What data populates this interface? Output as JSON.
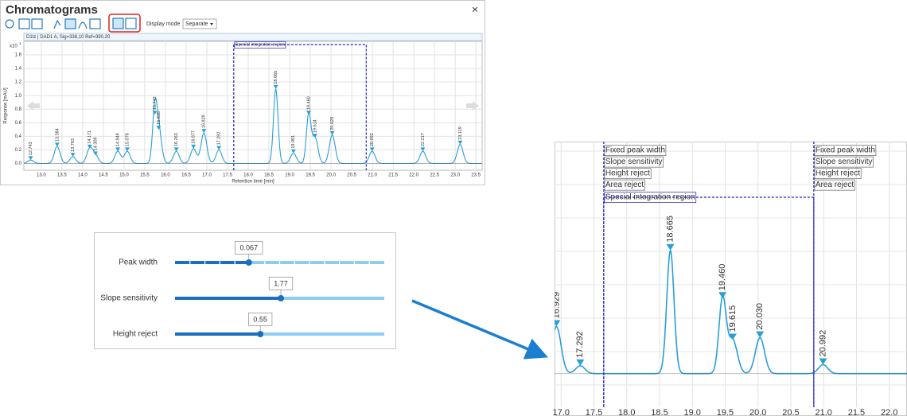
{
  "window": {
    "title": "Chromatograms",
    "close": "×",
    "display_mode_label": "Display mode",
    "display_mode_value": "Separate"
  },
  "chart_data": [
    {
      "type": "chromatogram",
      "title": "D1tz | DAD1 A, Sig=338,10 Ref=390,20",
      "x_label": "Retention time [min]",
      "y_label": "Response [mAU]",
      "y_scale": "x10",
      "y_scale_exponent": 1,
      "x": [
        12.743,
        13.384,
        13.763,
        14.171,
        14.309,
        14.849,
        15.078,
        15.742,
        15.835,
        16.263,
        16.677,
        16.929,
        17.292,
        18.665,
        19.091,
        19.46,
        19.614,
        20.029,
        20.992,
        22.217,
        23.119
      ],
      "x_labels": [
        "12.743",
        "13.384",
        "13.763",
        "14.171",
        "14.309",
        "14.849",
        "15.078",
        "15.742",
        "15.835",
        "16.263",
        "16.677",
        "16.929",
        "17.292",
        "18.665",
        "19.091",
        "19.460",
        "19.614",
        "20.029",
        "20.992",
        "22.217",
        "23.119"
      ],
      "values": [
        0.05,
        0.25,
        0.1,
        0.22,
        0.12,
        0.18,
        0.18,
        0.72,
        0.5,
        0.18,
        0.22,
        0.45,
        0.2,
        1.1,
        0.15,
        0.72,
        0.38,
        0.42,
        0.18,
        0.18,
        0.28
      ],
      "color": "#2a9fd6",
      "region": {
        "label": "Special integration region",
        "x": [
          17.65,
          20.85
        ]
      },
      "xlim": [
        12.58,
        23.65
      ],
      "ylim": [
        -0.1,
        1.8
      ],
      "xticks": [
        {
          "value": 13,
          "label": "13.0"
        },
        {
          "value": 13.5,
          "label": "13.5"
        },
        {
          "value": 14,
          "label": "14.0"
        },
        {
          "value": 14.5,
          "label": "14.5"
        },
        {
          "value": 15,
          "label": "15.0"
        },
        {
          "value": 15.5,
          "label": "15.5"
        },
        {
          "value": 16,
          "label": "16.0"
        },
        {
          "value": 16.5,
          "label": "16.5"
        },
        {
          "value": 17,
          "label": "17.0"
        },
        {
          "value": 17.5,
          "label": "17.5"
        },
        {
          "value": 18,
          "label": "18.0"
        },
        {
          "value": 18.5,
          "label": "18.5"
        },
        {
          "value": 19,
          "label": "19.0"
        },
        {
          "value": 19.5,
          "label": "19.5"
        },
        {
          "value": 20,
          "label": "20.0"
        },
        {
          "value": 20.5,
          "label": "20.5"
        },
        {
          "value": 21,
          "label": "21.0"
        },
        {
          "value": 21.5,
          "label": "21.5"
        },
        {
          "value": 22,
          "label": "22.0"
        },
        {
          "value": 22.5,
          "label": "22.5"
        },
        {
          "value": 23,
          "label": "23.0"
        },
        {
          "value": 23.5,
          "label": "23.5"
        }
      ],
      "yticks": [
        {
          "value": 0,
          "label": "0.0"
        },
        {
          "value": 0.2,
          "label": "0.2"
        },
        {
          "value": 0.4,
          "label": "0.4"
        },
        {
          "value": 0.6,
          "label": "0.6"
        },
        {
          "value": 0.8,
          "label": "0.8"
        },
        {
          "value": 1,
          "label": "1.0"
        },
        {
          "value": 1.2,
          "label": "1.2"
        },
        {
          "value": 1.4,
          "label": "1.4"
        },
        {
          "value": 1.6,
          "label": "1.6"
        }
      ],
      "grid": true
    },
    {
      "type": "chromatogram",
      "x": [
        16.929,
        17.292,
        18.665,
        19.46,
        19.615,
        20.03,
        20.992
      ],
      "x_labels": [
        "16.929",
        "17.292",
        "18.665",
        "19.460",
        "19.615",
        "20.030",
        "20.992"
      ],
      "values": [
        0.42,
        0.07,
        1.1,
        0.67,
        0.3,
        0.32,
        0.08
      ],
      "color": "#2a9fd6",
      "region": {
        "label": "Special integration region",
        "x": [
          17.65,
          20.85
        ]
      },
      "events": [
        {
          "x": 17.65,
          "labels": [
            "Fixed peak width",
            "Slope sensitivity",
            "Height reject",
            "Area reject"
          ]
        },
        {
          "x": 20.85,
          "labels": [
            "Fixed peak width",
            "Slope sensitivity",
            "Height reject",
            "Area reject"
          ]
        }
      ],
      "xlim": [
        16.9,
        22.27
      ],
      "ylim": [
        -0.3,
        2.07
      ],
      "xticks": [
        {
          "value": 17,
          "label": "17.0"
        },
        {
          "value": 17.5,
          "label": "17.5"
        },
        {
          "value": 18,
          "label": "18.0"
        },
        {
          "value": 18.5,
          "label": "18.5"
        },
        {
          "value": 19,
          "label": "19.0"
        },
        {
          "value": 19.5,
          "label": "19.5"
        },
        {
          "value": 20,
          "label": "20.0"
        },
        {
          "value": 20.5,
          "label": "20.5"
        },
        {
          "value": 21,
          "label": "21.0"
        },
        {
          "value": 21.5,
          "label": "21.5"
        },
        {
          "value": 22,
          "label": "22.0"
        }
      ],
      "grid": true
    }
  ],
  "sliders": [
    {
      "label": "Peak width",
      "value": 0.067,
      "range": [
        0,
        0.19
      ]
    },
    {
      "label": "Slope sensitivity",
      "value": 1.77,
      "range": [
        0,
        3.5
      ]
    },
    {
      "label": "Height reject",
      "value": 0.55,
      "range": [
        0,
        1.35
      ]
    }
  ]
}
